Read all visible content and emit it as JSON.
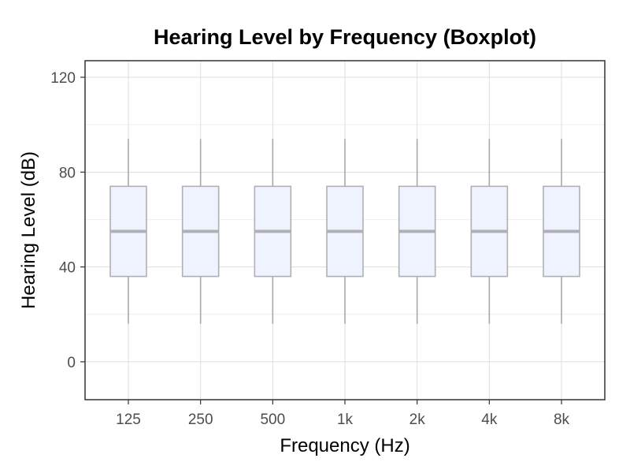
{
  "chart_data": {
    "type": "boxplot",
    "title": "Hearing Level by Frequency (Boxplot)",
    "xlabel": "Frequency (Hz)",
    "ylabel": "Hearing Level (dB)",
    "categories": [
      "125",
      "250",
      "500",
      "1k",
      "2k",
      "4k",
      "8k"
    ],
    "ylim": [
      -16,
      127
    ],
    "yticks": [
      0,
      40,
      80,
      120
    ],
    "grid": true,
    "legend": "none",
    "boxes": [
      {
        "category": "125",
        "min": 16,
        "q1": 36,
        "median": 55,
        "q3": 74,
        "max": 94
      },
      {
        "category": "250",
        "min": 16,
        "q1": 36,
        "median": 55,
        "q3": 74,
        "max": 94
      },
      {
        "category": "500",
        "min": 16,
        "q1": 36,
        "median": 55,
        "q3": 74,
        "max": 94
      },
      {
        "category": "1k",
        "min": 16,
        "q1": 36,
        "median": 55,
        "q3": 74,
        "max": 94
      },
      {
        "category": "2k",
        "min": 16,
        "q1": 36,
        "median": 55,
        "q3": 74,
        "max": 94
      },
      {
        "category": "4k",
        "min": 16,
        "q1": 36,
        "median": 55,
        "q3": 74,
        "max": 94
      },
      {
        "category": "8k",
        "min": 16,
        "q1": 36,
        "median": 55,
        "q3": 74,
        "max": 94
      }
    ],
    "colors": {
      "box_fill": "#eef3ff",
      "box_stroke": "#b0b0b4",
      "median": "#b0b0b4",
      "whisker": "#a8a8a8",
      "grid_major": "#dedede",
      "grid_minor": "#eeeeee",
      "panel_border": "#333333"
    }
  }
}
